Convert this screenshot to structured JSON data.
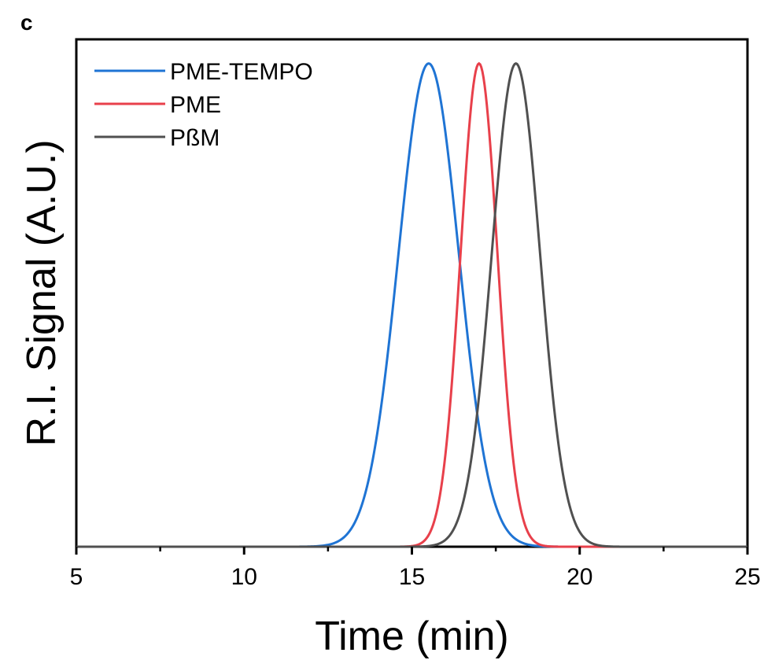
{
  "panel_label": "c",
  "chart_data": {
    "type": "line",
    "title": "",
    "xlabel": "Time (min)",
    "ylabel": "R.I. Signal (A.U.)",
    "xlim": [
      5,
      25
    ],
    "ylim": [
      0,
      1.05
    ],
    "x_ticks": [
      5,
      10,
      15,
      20,
      25
    ],
    "x_tick_labels": [
      "5",
      "10",
      "15",
      "20",
      "25"
    ],
    "y_ticks_shown": false,
    "grid": false,
    "legend_position": "top-left",
    "series": [
      {
        "name": "PME-TEMPO",
        "color": "#1f74d4",
        "peak_x": 15.5,
        "sigma": 0.9,
        "peak_y": 1.0
      },
      {
        "name": "PME",
        "color": "#e8404b",
        "peak_x": 17.0,
        "sigma": 0.55,
        "peak_y": 1.0
      },
      {
        "name": "PßM",
        "color": "#505050",
        "peak_x": 18.1,
        "sigma": 0.72,
        "peak_y": 1.0
      }
    ]
  }
}
